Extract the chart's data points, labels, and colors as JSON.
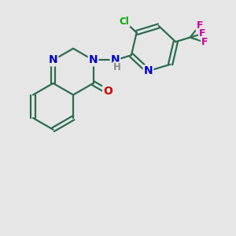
{
  "bg_color": "#e6e6e6",
  "bond_color": "#2d6b50",
  "bond_width": 1.6,
  "atom_colors": {
    "N": "#0000cc",
    "O": "#cc0000",
    "Cl": "#00aa00",
    "F": "#cc0099",
    "C": "#000000",
    "H": "#888888"
  },
  "font_size_atom": 10,
  "font_size_small": 8.5,
  "font_size_f": 9
}
